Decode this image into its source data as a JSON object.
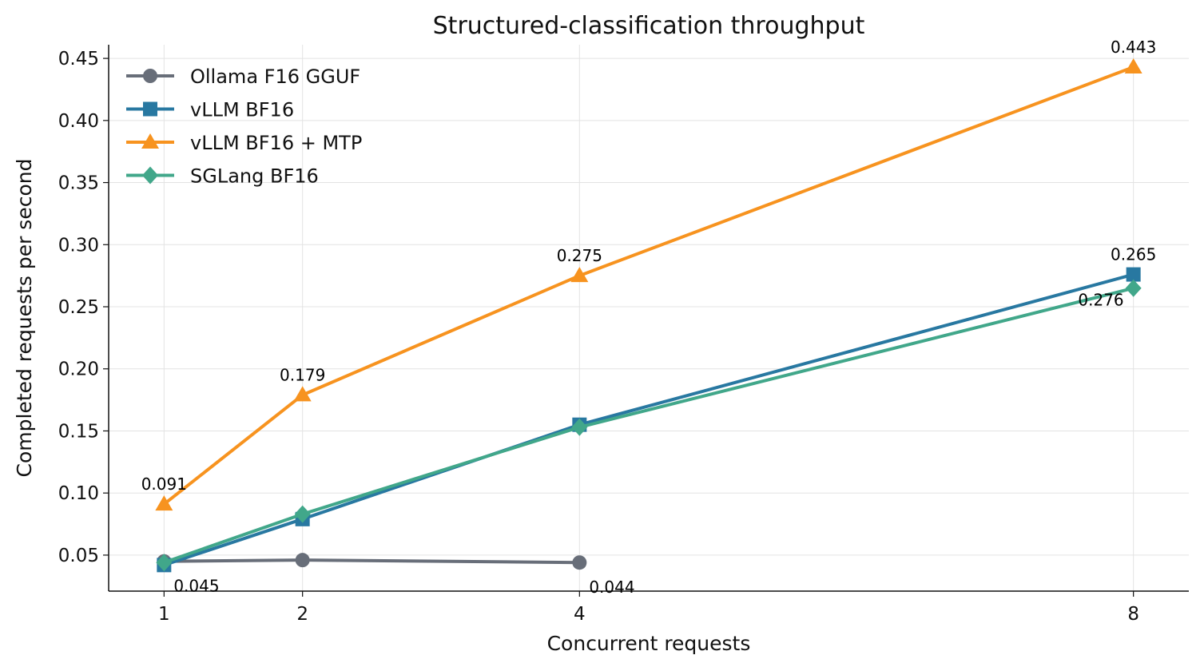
{
  "chart_data": {
    "type": "line",
    "title": "Structured-classification throughput",
    "xlabel": "Concurrent requests",
    "ylabel": "Completed requests per second",
    "x": [
      1,
      2,
      4,
      8
    ],
    "x_ticks": [
      "1",
      "2",
      "4",
      "8"
    ],
    "xlim": [
      0.6,
      8.4
    ],
    "ylim": [
      0.021,
      0.461
    ],
    "y_ticks": [
      "0.05",
      "0.10",
      "0.15",
      "0.20",
      "0.25",
      "0.30",
      "0.35",
      "0.40",
      "0.45"
    ],
    "grid": true,
    "legend_position": "top-left",
    "series": [
      {
        "name": "Ollama F16 GGUF",
        "color": "#686e79",
        "marker": "circle",
        "x": [
          1,
          2,
          4
        ],
        "values": [
          0.045,
          0.046,
          0.044
        ]
      },
      {
        "name": "vLLM BF16",
        "color": "#2878a1",
        "marker": "square",
        "x": [
          1,
          2,
          4,
          8
        ],
        "values": [
          0.042,
          0.079,
          0.155,
          0.276
        ]
      },
      {
        "name": "vLLM BF16 + MTP",
        "color": "#f7931f",
        "marker": "triangle",
        "x": [
          1,
          2,
          4,
          8
        ],
        "values": [
          0.091,
          0.179,
          0.275,
          0.443
        ]
      },
      {
        "name": "SGLang BF16",
        "color": "#41a78a",
        "marker": "diamond",
        "x": [
          1,
          2,
          4,
          8
        ],
        "values": [
          0.044,
          0.083,
          0.153,
          0.265
        ]
      }
    ],
    "annotations": [
      {
        "text": "0.045",
        "x": 1,
        "y": 0.045,
        "placement": "below-right"
      },
      {
        "text": "0.044",
        "x": 4,
        "y": 0.044,
        "placement": "below-right"
      },
      {
        "text": "0.091",
        "x": 1,
        "y": 0.091,
        "placement": "above"
      },
      {
        "text": "0.179",
        "x": 2,
        "y": 0.179,
        "placement": "above"
      },
      {
        "text": "0.275",
        "x": 4,
        "y": 0.275,
        "placement": "above"
      },
      {
        "text": "0.443",
        "x": 8,
        "y": 0.443,
        "placement": "above"
      },
      {
        "text": "0.265",
        "x": 8,
        "y": 0.276,
        "placement": "above"
      },
      {
        "text": "0.276",
        "x": 8,
        "y": 0.265,
        "placement": "below-left"
      }
    ]
  }
}
